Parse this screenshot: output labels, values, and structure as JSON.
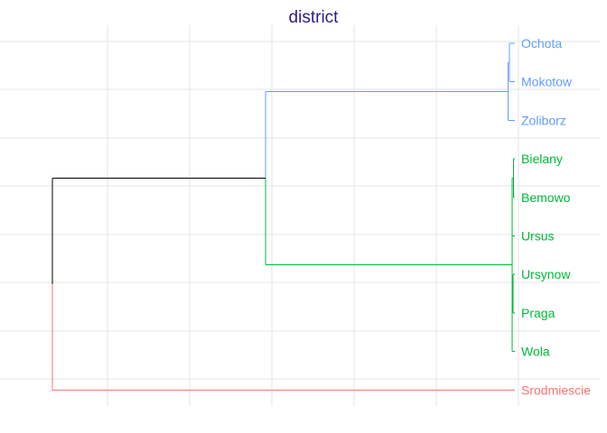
{
  "chart_data": {
    "type": "dendrogram",
    "title": "district",
    "orientation": "horizontal",
    "grid": true,
    "leaves": [
      "Ochota",
      "Mokotow",
      "Zoliborz",
      "Bielany",
      "Bemowo",
      "Ursus",
      "Ursynow",
      "Praga",
      "Wola",
      "Srodmiescie"
    ],
    "merges": [
      {
        "children": [
          "Ochota",
          "Mokotow"
        ],
        "height": 0.13
      },
      {
        "children": [
          "Ochota+Mokotow",
          "Zoliborz"
        ],
        "height": 0.17
      },
      {
        "children": [
          "Bielany",
          "Bemowo"
        ],
        "height": 0.03
      },
      {
        "children": [
          "Bielany+Bemowo",
          "Ursus"
        ],
        "height": 0.07
      },
      {
        "children": [
          "Ursynow",
          "Praga"
        ],
        "height": 0.04
      },
      {
        "children": [
          "Ursynow+Praga",
          "Wola"
        ],
        "height": 0.07
      },
      {
        "children": [
          "Bielany+Bemowo+Ursus",
          "Ursynow+Praga+Wola"
        ],
        "height": 0.07
      },
      {
        "children": [
          "Ochota+Mokotow+Zoliborz",
          "Bielany+Bemowo+Ursus+Ursynow+Praga+Wola"
        ],
        "height": 6.2
      },
      {
        "children": [
          "Ochota+Mokotow+Zoliborz+Bielany+Bemowo+Ursus+Ursynow+Praga+Wola",
          "Srodmiescie"
        ],
        "height": 11.5
      }
    ],
    "clusters": [
      {
        "leaves": [
          "Ochota",
          "Mokotow",
          "Zoliborz"
        ],
        "color": "#619CFF"
      },
      {
        "leaves": [
          "Bielany",
          "Bemowo",
          "Ursus",
          "Ursynow",
          "Praga",
          "Wola"
        ],
        "color": "#00BA38"
      },
      {
        "leaves": [
          "Srodmiescie"
        ],
        "color": "#F8766D"
      }
    ],
    "root_color": "#000000",
    "title_color": "#2E1A8C",
    "grid_color": "#E5E5E5"
  }
}
